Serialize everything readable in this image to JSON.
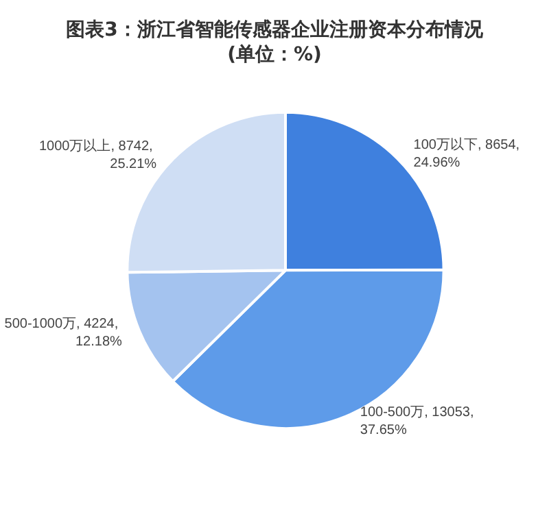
{
  "chart_data": {
    "type": "pie",
    "title": "图表3：浙江省智能传感器企业注册资本分布情况\n(单位：%)",
    "categories": [
      "100万以下",
      "100-500万",
      "500-1000万",
      "1000万以上"
    ],
    "values": [
      24.96,
      37.65,
      12.18,
      25.21
    ],
    "value_labels": [
      "8654, 24.96%",
      "13053, 37.65%",
      "4224, 12.18%",
      "8742, 25.21%"
    ],
    "colors": [
      "#3f80de",
      "#5e9be9",
      "#a4c3ef",
      "#cfdef4"
    ],
    "data_labels": true,
    "legend": false
  }
}
